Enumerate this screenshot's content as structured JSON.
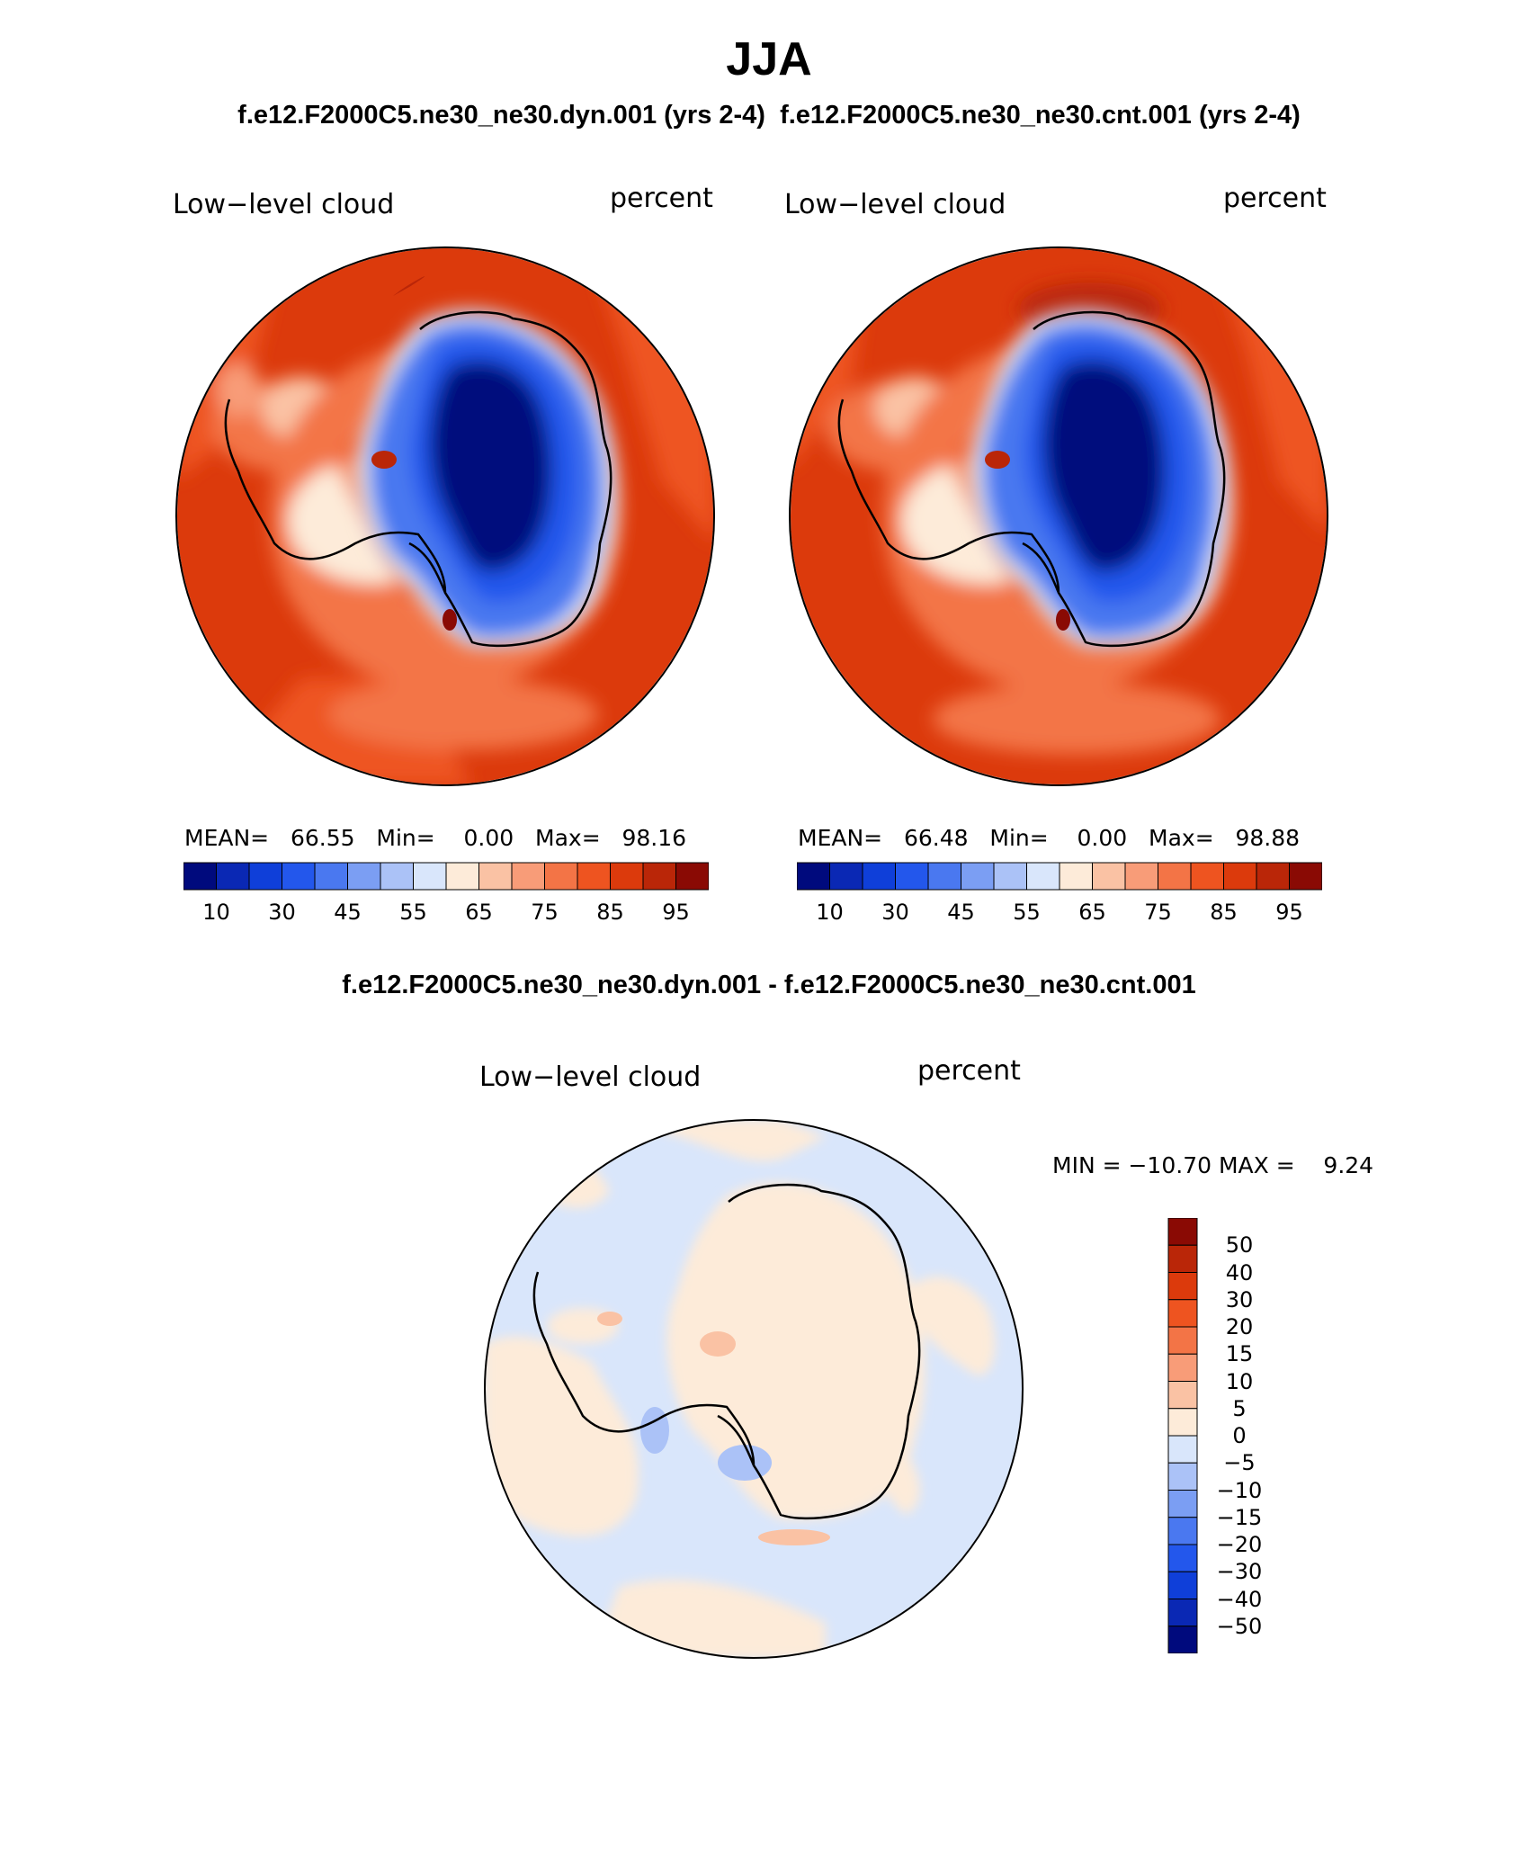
{
  "title": "JJA",
  "subtitle_left": "f.e12.F2000C5.ne30_ne30.dyn.001 (yrs 2-4)",
  "subtitle_right": "f.e12.F2000C5.ne30_ne30.cnt.001 (yrs 2-4)",
  "diff_title": "f.e12.F2000C5.ne30_ne30.dyn.001 - f.e12.F2000C5.ne30_ne30.cnt.001",
  "panels": [
    {
      "variable": "Low−level cloud",
      "units": "percent",
      "stats": {
        "mean_label": "MEAN=",
        "mean": "66.55",
        "min_label": "Min=",
        "min": "0.00",
        "max_label": "Max=",
        "max": "98.16"
      }
    },
    {
      "variable": "Low−level cloud",
      "units": "percent",
      "stats": {
        "mean_label": "MEAN=",
        "mean": "66.48",
        "min_label": "Min=",
        "min": "0.00",
        "max_label": "Max=",
        "max": "98.88"
      }
    }
  ],
  "diff_panel": {
    "variable": "Low−level cloud",
    "units": "percent",
    "minmax_text": "MIN = −10.70 MAX =    9.24"
  },
  "colorbar_main": {
    "colors": [
      "#000a7d",
      "#0a28b4",
      "#0f3fd9",
      "#2357ec",
      "#4a78f0",
      "#7b9ef3",
      "#abc2f7",
      "#d9e6fb",
      "#fdebd9",
      "#fac2a4",
      "#f89c78",
      "#f37446",
      "#ee5420",
      "#dc3a0c",
      "#ba2608",
      "#8a0a04"
    ],
    "labels": [
      "10",
      "30",
      "45",
      "55",
      "65",
      "75",
      "85",
      "95"
    ]
  },
  "colorbar_diff": {
    "colors": [
      "#8a0a04",
      "#ba2608",
      "#dc3a0c",
      "#ee5420",
      "#f37446",
      "#f89c78",
      "#fac2a4",
      "#fdebd9",
      "#d9e6fb",
      "#abc2f7",
      "#7b9ef3",
      "#4a78f0",
      "#2357ec",
      "#0f3fd9",
      "#0a28b4",
      "#000a7d"
    ],
    "labels": [
      "50",
      "40",
      "30",
      "20",
      "15",
      "10",
      "5",
      "0",
      "−5",
      "−10",
      "−15",
      "−20",
      "−30",
      "−40",
      "−50"
    ]
  }
}
